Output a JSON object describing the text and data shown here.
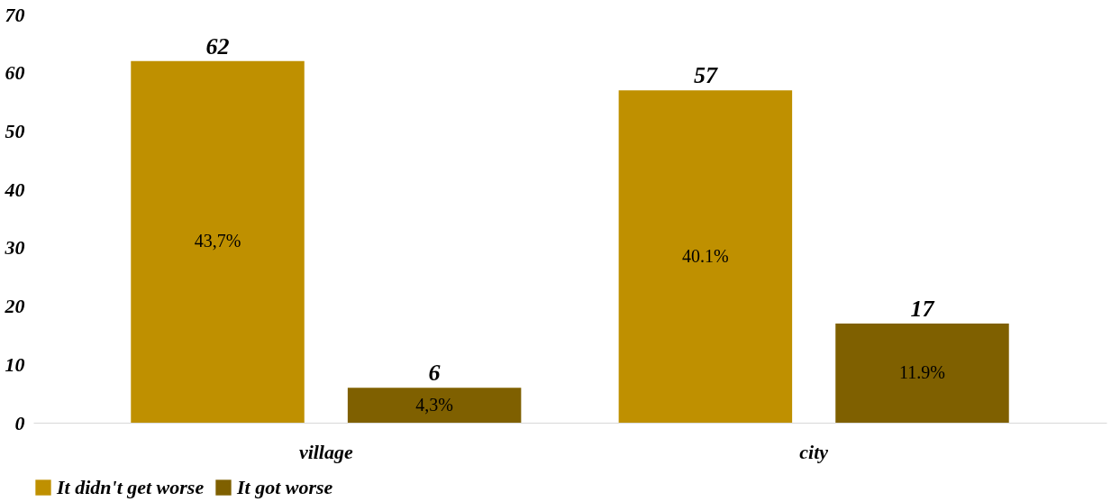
{
  "chart_data": {
    "type": "bar",
    "categories": [
      "village",
      "city"
    ],
    "series": [
      {
        "name": "It didn't get worse",
        "color": "#bf9000",
        "values": [
          62,
          57
        ]
      },
      {
        "name": "It got worse",
        "color": "#7f6000",
        "values": [
          6,
          17
        ]
      }
    ],
    "annotations": [
      "43,7%",
      "40.1%",
      "4,3%",
      "11.9%"
    ],
    "ylim": [
      0,
      70
    ],
    "yticks": [
      0,
      10,
      20,
      30,
      40,
      50,
      60,
      70
    ],
    "grid": false,
    "legend": "bottom",
    "data_labels": true
  }
}
